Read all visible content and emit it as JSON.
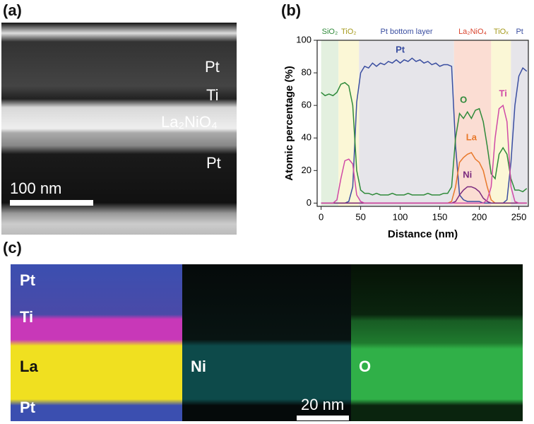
{
  "panel_a": {
    "label": "(a)",
    "layers": [
      "Pt",
      "Ti",
      "La₂NiO₄",
      "Pt"
    ],
    "scale_bar": "100 nm"
  },
  "panel_b_label": "(b)",
  "chart_data": {
    "type": "line",
    "xlabel": "Distance (nm)",
    "ylabel": "Atomic percentage (%)",
    "xlim": [
      -5,
      262
    ],
    "ylim": [
      -2,
      100
    ],
    "xticks": [
      0,
      50,
      100,
      150,
      200,
      250
    ],
    "yticks": [
      0,
      20,
      40,
      60,
      80,
      100
    ],
    "regions": [
      {
        "name": "SiO₂",
        "start": 0,
        "end": 22,
        "color": "#e3f0df",
        "label_color": "#2f8a3a"
      },
      {
        "name": "TiO₂",
        "start": 22,
        "end": 48,
        "color": "#fbf7d6",
        "label_color": "#a59a1c"
      },
      {
        "name": "Pt bottom layer",
        "start": 48,
        "end": 168,
        "color": "#e6e5ea",
        "label_color": "#3a4ea0"
      },
      {
        "name": "La₂NiO₄",
        "start": 168,
        "end": 215,
        "color": "#fbddd3",
        "label_color": "#d9452f"
      },
      {
        "name": "TiOₓ",
        "start": 215,
        "end": 240,
        "color": "#fbf7d6",
        "label_color": "#a59a1c"
      },
      {
        "name": "Pt",
        "start": 240,
        "end": 262,
        "color": "#e6e5ea",
        "label_color": "#3a4ea0"
      }
    ],
    "x": [
      0,
      5,
      10,
      15,
      20,
      25,
      30,
      35,
      40,
      45,
      50,
      55,
      60,
      65,
      70,
      75,
      80,
      85,
      90,
      95,
      100,
      105,
      110,
      115,
      120,
      125,
      130,
      135,
      140,
      145,
      150,
      155,
      160,
      165,
      170,
      175,
      180,
      185,
      190,
      195,
      200,
      205,
      210,
      215,
      220,
      225,
      230,
      235,
      240,
      245,
      250,
      255,
      260
    ],
    "series": [
      {
        "name": "Pt",
        "color": "#3a4ea0",
        "values": [
          0,
          0,
          0,
          0,
          0,
          0,
          0,
          1,
          10,
          62,
          80,
          84,
          83,
          86,
          84,
          86,
          85,
          87,
          86,
          88,
          86,
          88,
          87,
          89,
          87,
          88,
          86,
          87,
          85,
          86,
          84,
          85,
          85,
          84,
          35,
          5,
          2,
          1,
          1,
          1,
          1,
          0,
          0,
          0,
          0,
          0,
          0,
          2,
          25,
          60,
          78,
          83,
          81
        ]
      },
      {
        "name": "O",
        "color": "#2f8a3a",
        "values": [
          68,
          66,
          67,
          66,
          68,
          73,
          74,
          72,
          60,
          20,
          8,
          6,
          6,
          5,
          6,
          5,
          5,
          5,
          6,
          5,
          5,
          5,
          6,
          5,
          5,
          5,
          5,
          6,
          5,
          5,
          5,
          6,
          6,
          10,
          40,
          55,
          52,
          56,
          52,
          57,
          58,
          50,
          35,
          18,
          15,
          30,
          34,
          30,
          15,
          8,
          8,
          7,
          9
        ]
      },
      {
        "name": "La",
        "color": "#e8782a",
        "values": [
          0,
          0,
          0,
          0,
          0,
          0,
          0,
          0,
          0,
          0,
          0,
          0,
          0,
          0,
          0,
          0,
          0,
          0,
          0,
          0,
          0,
          0,
          0,
          0,
          0,
          0,
          0,
          0,
          0,
          0,
          0,
          0,
          0,
          1,
          10,
          25,
          28,
          30,
          31,
          27,
          25,
          20,
          10,
          2,
          0,
          0,
          0,
          0,
          0,
          0,
          0,
          0,
          0
        ]
      },
      {
        "name": "Ni",
        "color": "#7b2a7e",
        "values": [
          0,
          0,
          0,
          0,
          0,
          0,
          0,
          0,
          0,
          0,
          0,
          0,
          0,
          0,
          0,
          0,
          0,
          0,
          0,
          0,
          0,
          0,
          0,
          0,
          0,
          0,
          0,
          0,
          0,
          0,
          0,
          0,
          0,
          0,
          1,
          5,
          8,
          10,
          10,
          9,
          7,
          3,
          1,
          0,
          0,
          0,
          0,
          0,
          0,
          0,
          0,
          0,
          0
        ]
      },
      {
        "name": "Ti",
        "color": "#d04aa6",
        "values": [
          0,
          0,
          0,
          0,
          2,
          15,
          26,
          27,
          24,
          5,
          1,
          0,
          0,
          0,
          0,
          0,
          0,
          0,
          0,
          0,
          0,
          0,
          0,
          0,
          0,
          0,
          0,
          0,
          0,
          0,
          0,
          0,
          0,
          0,
          0,
          0,
          0,
          0,
          0,
          0,
          0,
          0,
          2,
          10,
          40,
          58,
          60,
          50,
          10,
          1,
          0,
          0,
          0
        ]
      }
    ]
  },
  "panel_c": {
    "label": "(c)",
    "overlay_layers": [
      "Pt",
      "Ti",
      "La",
      "Pt"
    ],
    "ni_map": "Ni",
    "o_map": "O",
    "scale_bar": "20 nm"
  }
}
